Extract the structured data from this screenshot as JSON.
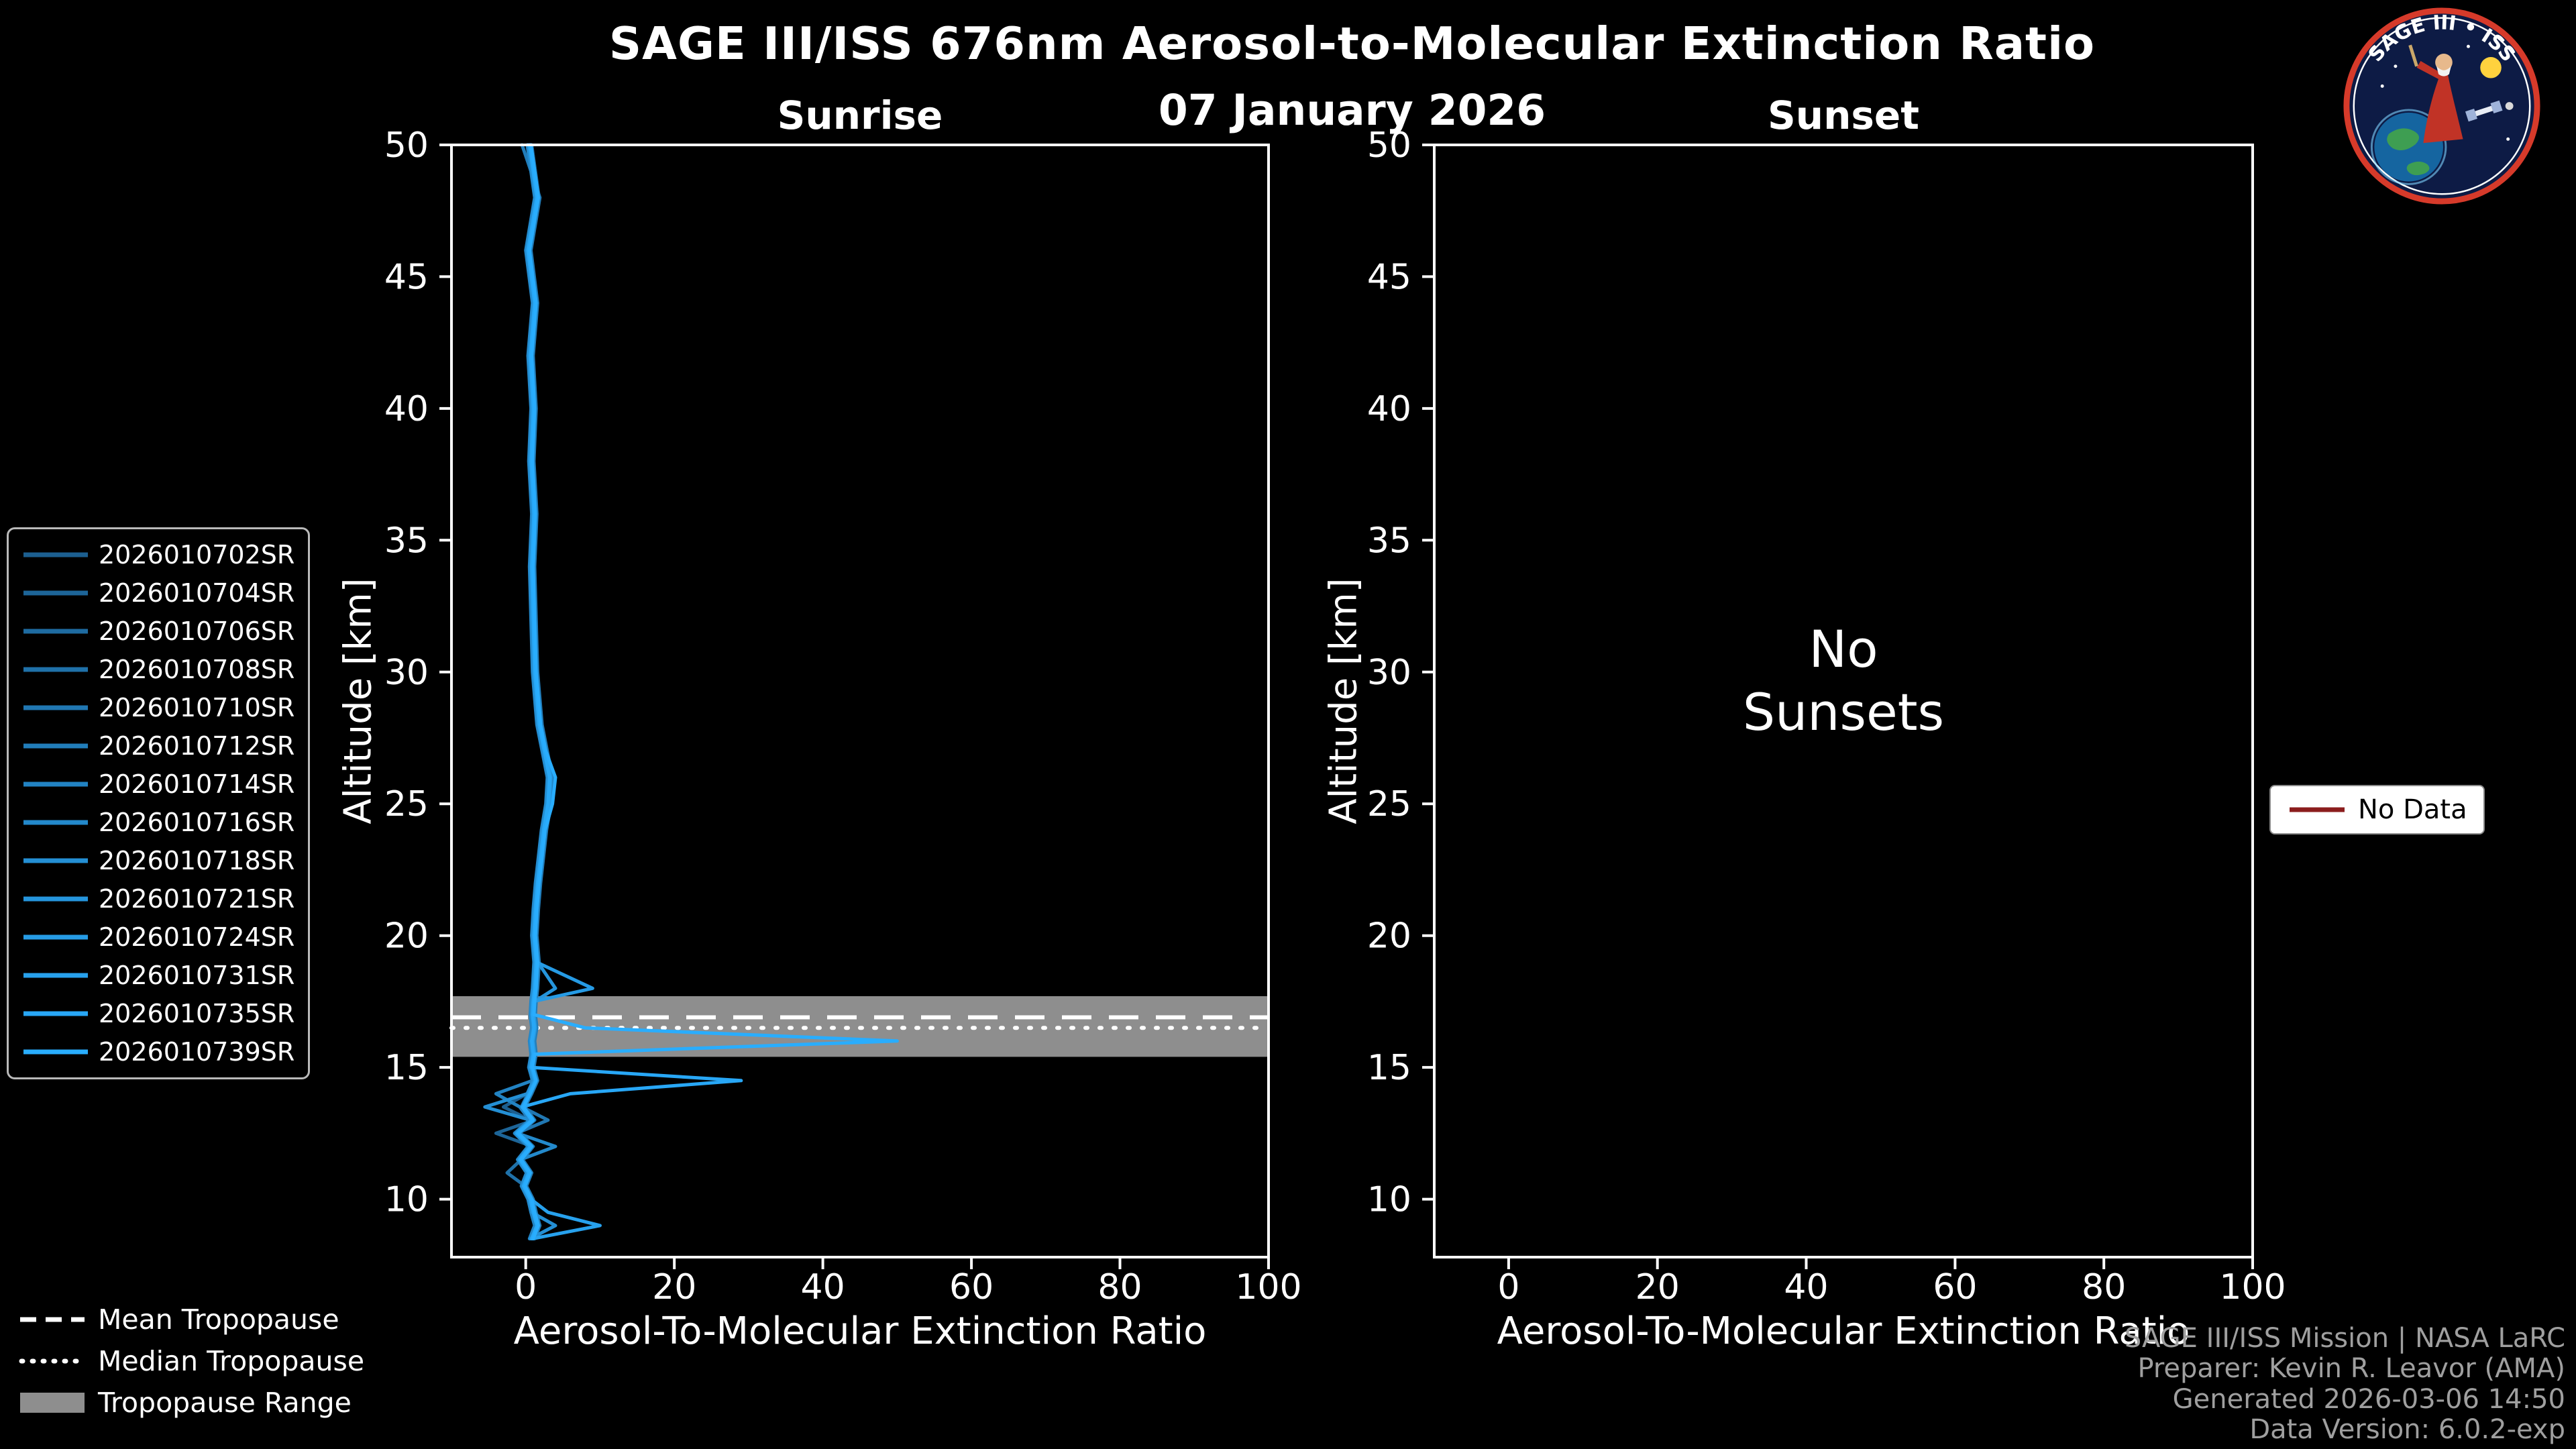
{
  "header": {
    "title": "SAGE III/ISS 676nm Aerosol-to-Molecular Extinction Ratio",
    "date": "07 January 2026"
  },
  "chart_data": {
    "type": "line",
    "title": "SAGE III/ISS 676nm Aerosol-to-Molecular Extinction Ratio",
    "subtitle": "07 January 2026",
    "panels": [
      {
        "id": "sunrise",
        "title": "Sunrise",
        "xlabel": "Aerosol-To-Molecular Extinction Ratio",
        "ylabel": "Altitude [km]",
        "xlim": [
          -10,
          100
        ],
        "ylim": [
          7.8,
          50
        ],
        "xticks": [
          0,
          20,
          40,
          60,
          80,
          100
        ],
        "yticks": [
          10,
          15,
          20,
          25,
          30,
          35,
          40,
          45,
          50
        ],
        "has_data": true
      },
      {
        "id": "sunset",
        "title": "Sunset",
        "xlabel": "Aerosol-To-Molecular Extinction Ratio",
        "ylabel": "Altitude [km]",
        "xlim": [
          -10,
          100
        ],
        "ylim": [
          7.8,
          50
        ],
        "xticks": [
          0,
          20,
          40,
          60,
          80,
          100
        ],
        "yticks": [
          10,
          15,
          20,
          25,
          30,
          35,
          40,
          45,
          50
        ],
        "has_data": false,
        "empty_text": [
          "No",
          "Sunsets"
        ]
      }
    ],
    "altitudes": [
      50,
      48,
      46,
      44,
      42,
      40,
      38,
      36,
      34,
      32,
      30,
      28,
      27,
      26,
      25,
      24,
      23,
      22,
      21,
      20,
      19,
      18,
      17.5,
      17,
      16.5,
      16,
      15.5,
      15,
      14.5,
      14,
      13.5,
      13,
      12.5,
      12,
      11.5,
      11,
      10.5,
      10,
      9.5,
      9,
      8.5
    ],
    "series": [
      {
        "name": "2026010702SR",
        "color": "#1c5f90",
        "values": [
          0.3,
          1.3,
          0.1,
          1.0,
          0.4,
          0.8,
          0.5,
          0.9,
          0.6,
          0.8,
          1.0,
          1.6,
          2.3,
          3.0,
          2.8,
          2.2,
          1.8,
          1.4,
          1.1,
          0.9,
          1.2,
          1.0,
          0.8,
          0.7,
          0.9,
          0.6,
          0.8,
          0.5,
          1.0,
          0.2,
          -3.0,
          0.6,
          -1.4,
          0.4,
          -1.0,
          0.2,
          -0.5,
          0.4,
          0.8,
          1.3,
          0.6
        ]
      },
      {
        "name": "2026010704SR",
        "color": "#1d6598",
        "values": [
          0.8,
          1.8,
          0.6,
          1.5,
          0.9,
          1.3,
          1.0,
          1.4,
          1.1,
          1.3,
          1.5,
          2.1,
          2.8,
          3.5,
          3.3,
          2.7,
          2.3,
          1.9,
          1.6,
          1.4,
          1.7,
          1.5,
          1.3,
          1.2,
          1.4,
          1.1,
          1.3,
          1.0,
          1.5,
          0.7,
          -0.2,
          1.1,
          -4.0,
          0.9,
          -0.5,
          0.7,
          0,
          0.9,
          1.3,
          1.8,
          1.1
        ]
      },
      {
        "name": "2026010706SR",
        "color": "#1e6ba1",
        "values": [
          0.4,
          1.4,
          0.2,
          1.1,
          0.5,
          0.9,
          0.6,
          1.0,
          0.7,
          0.9,
          1.1,
          1.7,
          2.4,
          3.1,
          2.9,
          2.3,
          1.9,
          1.5,
          1.2,
          1.0,
          1.3,
          1.1,
          0.9,
          0.8,
          1.0,
          0.7,
          0.9,
          0.6,
          1.1,
          0.3,
          -0.6,
          0.7,
          -1.3,
          0.5,
          -0.9,
          0.3,
          -0.4,
          0.5,
          0.9,
          1.4,
          0.7
        ]
      },
      {
        "name": "2026010708SR",
        "color": "#1f71a9",
        "values": [
          0.7,
          1.7,
          0.5,
          1.4,
          0.8,
          1.2,
          0.9,
          1.3,
          1.0,
          1.2,
          1.4,
          2.0,
          2.7,
          3.4,
          3.2,
          2.6,
          2.2,
          1.8,
          1.5,
          1.3,
          1.6,
          1.4,
          1.2,
          1.1,
          1.3,
          1.0,
          1.2,
          0.9,
          1.4,
          0.6,
          -0.3,
          1.0,
          -1.0,
          0.8,
          -0.6,
          -2.5,
          -0.1,
          0.8,
          1.2,
          1.7,
          1.0
        ]
      },
      {
        "name": "2026010710SR",
        "color": "#2077b2",
        "values": [
          0.5,
          1.5,
          0.3,
          1.2,
          0.6,
          1.0,
          0.7,
          1.1,
          0.8,
          1.0,
          1.2,
          1.8,
          2.5,
          3.2,
          3.0,
          2.4,
          2.0,
          1.6,
          1.3,
          1.1,
          1.4,
          1.2,
          1.0,
          0.9,
          1.1,
          0.8,
          1.0,
          0.7,
          1.2,
          0.4,
          -0.5,
          3.0,
          -1.2,
          0.6,
          -0.8,
          0.4,
          -0.3,
          0.6,
          1.0,
          1.5,
          0.8
        ]
      },
      {
        "name": "2026010712SR",
        "color": "#217dba",
        "values": [
          -0.5,
          1.9,
          0.7,
          1.6,
          1.0,
          1.4,
          1.1,
          1.5,
          1.2,
          1.4,
          1.6,
          2.2,
          2.9,
          3.6,
          3.4,
          2.8,
          2.4,
          2.0,
          1.7,
          1.5,
          1.8,
          1.6,
          1.4,
          1.3,
          1.5,
          1.2,
          1.4,
          1.1,
          1.6,
          0.8,
          -0.1,
          1.2,
          -0.8,
          1.0,
          -0.4,
          0.8,
          0.1,
          1.0,
          1.4,
          1.9,
          1.2
        ]
      },
      {
        "name": "2026010714SR",
        "color": "#2283c3",
        "values": [
          0.2,
          1.2,
          0,
          0.9,
          0.3,
          0.7,
          0.4,
          0.8,
          0.5,
          0.7,
          0.9,
          1.5,
          2.2,
          2.9,
          2.7,
          2.1,
          1.7,
          1.3,
          1.0,
          0.8,
          1.1,
          0.9,
          0.7,
          0.6,
          0.8,
          0.5,
          0.7,
          0.4,
          0.9,
          -4.0,
          -0.8,
          0.5,
          -1.5,
          0.3,
          -1.1,
          0.1,
          -0.6,
          0.3,
          0.7,
          1.2,
          0.5
        ]
      },
      {
        "name": "2026010716SR",
        "color": "#2389cb",
        "values": [
          0.6,
          1.6,
          0.4,
          1.3,
          0.7,
          1.1,
          0.8,
          1.2,
          0.9,
          1.1,
          1.3,
          1.9,
          2.6,
          3.3,
          3.1,
          2.5,
          2.1,
          1.7,
          1.4,
          1.2,
          1.5,
          1.3,
          1.1,
          1.0,
          1.2,
          0.9,
          1.1,
          0.8,
          1.3,
          0.5,
          -0.4,
          0.9,
          -1.1,
          4.0,
          -0.7,
          0.5,
          -0.2,
          0.7,
          1.1,
          1.6,
          0.9
        ]
      },
      {
        "name": "2026010718SR",
        "color": "#248fd4",
        "values": [
          0.3,
          1.3,
          0.1,
          1.0,
          0.4,
          0.8,
          0.5,
          0.9,
          0.6,
          0.8,
          1.0,
          1.6,
          2.3,
          3.0,
          2.8,
          2.2,
          1.8,
          1.4,
          1.1,
          0.9,
          1.2,
          1.0,
          0.8,
          0.7,
          0.9,
          0.6,
          0.8,
          0.5,
          1.0,
          0.2,
          -5.5,
          0.6,
          -1.4,
          0.4,
          -1.0,
          0.2,
          -0.5,
          0.4,
          0.8,
          4.0,
          0.6
        ]
      },
      {
        "name": "2026010721SR",
        "color": "#2595dc",
        "values": [
          0.7,
          1.7,
          0.5,
          1.4,
          0.8,
          1.2,
          0.9,
          1.3,
          1.0,
          1.2,
          1.4,
          2.0,
          2.7,
          3.4,
          3.2,
          2.6,
          2.2,
          1.8,
          1.5,
          1.3,
          1.6,
          4.0,
          1.2,
          1.1,
          1.3,
          1.0,
          1.2,
          0.9,
          1.4,
          0.6,
          -0.3,
          1.0,
          -1.0,
          0.8,
          -0.6,
          0.6,
          -0.1,
          0.8,
          1.2,
          1.7,
          1.0
        ]
      },
      {
        "name": "2026010724SR",
        "color": "#269be5",
        "values": [
          0.5,
          1.5,
          0.3,
          1.2,
          0.6,
          1.0,
          0.7,
          1.1,
          0.8,
          1.0,
          1.2,
          1.8,
          2.5,
          3.2,
          3.0,
          2.4,
          2.0,
          1.6,
          1.3,
          1.1,
          1.4,
          9.0,
          1.0,
          0.9,
          1.1,
          0.8,
          1.0,
          0.7,
          1.2,
          0.4,
          -0.5,
          0.8,
          -1.2,
          0.6,
          -0.8,
          0.4,
          -0.3,
          0.6,
          1.0,
          1.5,
          0.8
        ]
      },
      {
        "name": "2026010731SR",
        "color": "#27a1ed",
        "values": [
          0.6,
          1.6,
          0.4,
          1.3,
          0.7,
          1.1,
          0.8,
          1.2,
          0.9,
          1.1,
          1.3,
          1.9,
          2.6,
          3.3,
          3.1,
          2.5,
          2.1,
          1.7,
          1.4,
          1.2,
          1.5,
          1.3,
          1.1,
          1.0,
          1.2,
          0.9,
          1.1,
          0.8,
          1.3,
          0.5,
          -0.4,
          0.9,
          -1.1,
          0.7,
          -0.7,
          0.5,
          -0.2,
          0.7,
          3.0,
          10.0,
          0.9
        ]
      },
      {
        "name": "2026010735SR",
        "color": "#28a7f6",
        "values": [
          0.5,
          1.5,
          0.3,
          1.2,
          0.6,
          1.0,
          0.7,
          1.1,
          0.8,
          1.0,
          1.2,
          1.8,
          2.5,
          3.2,
          3.0,
          2.4,
          2.0,
          1.6,
          1.3,
          1.1,
          1.4,
          1.2,
          1.0,
          0.9,
          1.1,
          0.8,
          1.0,
          0.7,
          29.0,
          6.0,
          -0.5,
          0.8,
          -1.2,
          0.6,
          -0.8,
          0.4,
          -0.3,
          0.6,
          1.0,
          1.5,
          0.8
        ]
      },
      {
        "name": "2026010739SR",
        "color": "#29adfe",
        "values": [
          0.7,
          1.7,
          0.5,
          1.4,
          0.8,
          1.2,
          0.9,
          1.3,
          1.0,
          1.2,
          1.4,
          2.0,
          2.7,
          4.0,
          3.6,
          2.6,
          2.2,
          1.8,
          1.5,
          1.3,
          1.6,
          1.4,
          1.2,
          1.1,
          8.0,
          50.0,
          1.2,
          0.9,
          1.4,
          0.6,
          -0.3,
          1.0,
          -1.0,
          0.8,
          -0.6,
          0.6,
          -0.1,
          0.8,
          1.2,
          1.7,
          1.0
        ]
      }
    ],
    "tropopause": {
      "mean_km": 16.9,
      "median_km": 16.5,
      "range_km": [
        15.4,
        17.7
      ],
      "band_color": "#8e8e8e"
    }
  },
  "legends": {
    "tropopause_items": [
      {
        "label": "Mean Tropopause",
        "style": "dashed"
      },
      {
        "label": "Median Tropopause",
        "style": "dotted"
      },
      {
        "label": "Tropopause Range",
        "style": "patch"
      }
    ],
    "no_data": {
      "label": "No Data",
      "color": "#8b1d1d"
    }
  },
  "footer": {
    "lines": [
      "SAGE III/ISS Mission | NASA LaRC",
      "Preparer: Kevin R. Leavor (AMA)",
      "Generated 2026-03-06 14:50",
      "Data Version: 6.0.2-exp"
    ]
  },
  "logo": {
    "title": "SAGE III • ISS"
  }
}
